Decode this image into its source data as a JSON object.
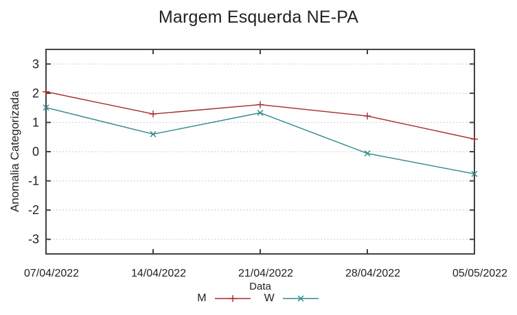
{
  "page": {
    "background": "#ffffff"
  },
  "colors": {
    "axis": "#404040",
    "grid": "#b9b9b9",
    "text": "#212121"
  },
  "chart_data": {
    "type": "line",
    "title": "Margem Esquerda NE-PA",
    "xlabel": "Data",
    "ylabel": "Anomalia Categorizada",
    "x_tick_labels": [
      "07/04/2022",
      "14/04/2022",
      "21/04/2022",
      "28/04/2022",
      "05/05/2022"
    ],
    "y_ticks": [
      3,
      2,
      1,
      0,
      -1,
      -2,
      -3
    ],
    "ylim": [
      -3.5,
      3.5
    ],
    "grid": "horizontal-dotted",
    "legend_position": "bottom-center",
    "series": [
      {
        "name": "M",
        "color": "#a52828",
        "marker": "plus",
        "values": [
          2.05,
          1.29,
          1.61,
          1.22,
          0.43
        ]
      },
      {
        "name": "W",
        "color": "#2d8789",
        "marker": "cross",
        "values": [
          1.51,
          0.6,
          1.33,
          -0.06,
          -0.76
        ]
      }
    ]
  }
}
